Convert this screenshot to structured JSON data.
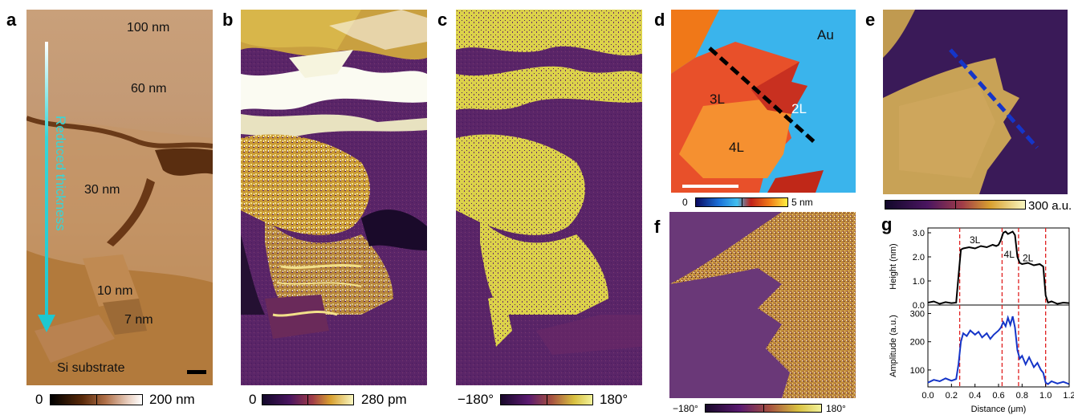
{
  "panels": {
    "a": {
      "label": "a",
      "thickness_labels": [
        "100 nm",
        "60 nm",
        "30 nm",
        "10 nm",
        "7 nm"
      ],
      "substrate_label": "Si substrate",
      "arrow_label": "Reduced thickness",
      "colorbar": {
        "min": "0",
        "max": "200 nm"
      }
    },
    "b": {
      "label": "b",
      "colorbar": {
        "min": "0",
        "max": "280 pm"
      }
    },
    "c": {
      "label": "c",
      "colorbar": {
        "min": "−180°",
        "max": "180°"
      }
    },
    "d": {
      "label": "d",
      "layer_labels": {
        "au": "Au",
        "l3": "3L",
        "l2": "2L",
        "l4": "4L"
      },
      "colorbar": {
        "min": "0",
        "max": "5 nm"
      }
    },
    "e": {
      "label": "e",
      "colorbar": {
        "max": "300 a.u."
      }
    },
    "f": {
      "label": "f",
      "colorbar": {
        "min": "−180°",
        "max": "180°"
      }
    },
    "g": {
      "label": "g",
      "layer_labels": [
        "3L",
        "4L",
        "2L"
      ]
    }
  },
  "colors": {
    "topo_brown": "#a8703a",
    "piezo_dark": "#3b1048",
    "piezo_gold": "#d6b23a",
    "phase_yellow": "#e3dc52",
    "cyan_arrow": "#37d6d8",
    "line_black": "#000000",
    "line_blue": "#1535c8",
    "guide_red": "#e02020"
  },
  "chart_data": [
    {
      "type": "line",
      "ylabel": "Height (nm)",
      "ylim": [
        0,
        3.2
      ],
      "yticks": [
        "0.0",
        "1.0",
        "2.0",
        "3.0"
      ],
      "xlim": [
        0,
        1.2
      ],
      "series": [
        {
          "x": [
            0.0,
            0.05,
            0.1,
            0.15,
            0.2,
            0.24,
            0.26,
            0.28,
            0.3,
            0.35,
            0.4,
            0.45,
            0.5,
            0.55,
            0.58,
            0.6,
            0.62,
            0.64,
            0.66,
            0.68,
            0.7,
            0.72,
            0.74,
            0.76,
            0.78,
            0.8,
            0.85,
            0.9,
            0.95,
            0.98,
            1.0,
            1.02,
            1.05,
            1.1,
            1.15,
            1.2
          ],
          "y": [
            0.1,
            0.15,
            0.05,
            0.12,
            0.08,
            0.1,
            1.2,
            2.3,
            2.35,
            2.4,
            2.35,
            2.45,
            2.4,
            2.5,
            2.45,
            2.5,
            2.7,
            3.0,
            3.05,
            2.95,
            3.0,
            3.05,
            2.9,
            2.0,
            1.75,
            1.7,
            1.75,
            1.65,
            1.7,
            1.6,
            0.4,
            0.1,
            0.15,
            0.05,
            0.1,
            0.08
          ]
        }
      ],
      "guides_x": [
        0.27,
        0.63,
        0.77,
        1.0
      ]
    },
    {
      "type": "line",
      "xlabel": "Distance (μm)",
      "ylabel": "Amplitude (a.u.)",
      "ylim": [
        40,
        330
      ],
      "yticks": [
        "100",
        "200",
        "300"
      ],
      "xlim": [
        0,
        1.2
      ],
      "xticks": [
        "0.0",
        "0.2",
        "0.4",
        "0.6",
        "0.8",
        "1.0",
        "1.2"
      ],
      "series": [
        {
          "x": [
            0.0,
            0.05,
            0.1,
            0.15,
            0.2,
            0.24,
            0.26,
            0.28,
            0.3,
            0.33,
            0.36,
            0.4,
            0.43,
            0.46,
            0.5,
            0.53,
            0.56,
            0.6,
            0.62,
            0.64,
            0.66,
            0.68,
            0.7,
            0.72,
            0.74,
            0.76,
            0.78,
            0.8,
            0.83,
            0.86,
            0.9,
            0.93,
            0.96,
            0.98,
            1.0,
            1.02,
            1.05,
            1.1,
            1.15,
            1.2
          ],
          "y": [
            55,
            65,
            60,
            70,
            62,
            68,
            120,
            200,
            230,
            220,
            240,
            225,
            235,
            215,
            230,
            210,
            225,
            240,
            250,
            270,
            255,
            285,
            260,
            290,
            250,
            170,
            140,
            150,
            120,
            145,
            110,
            125,
            100,
            90,
            55,
            50,
            60,
            52,
            58,
            50
          ]
        }
      ],
      "guides_x": [
        0.27,
        0.63,
        0.77,
        1.0
      ]
    }
  ]
}
